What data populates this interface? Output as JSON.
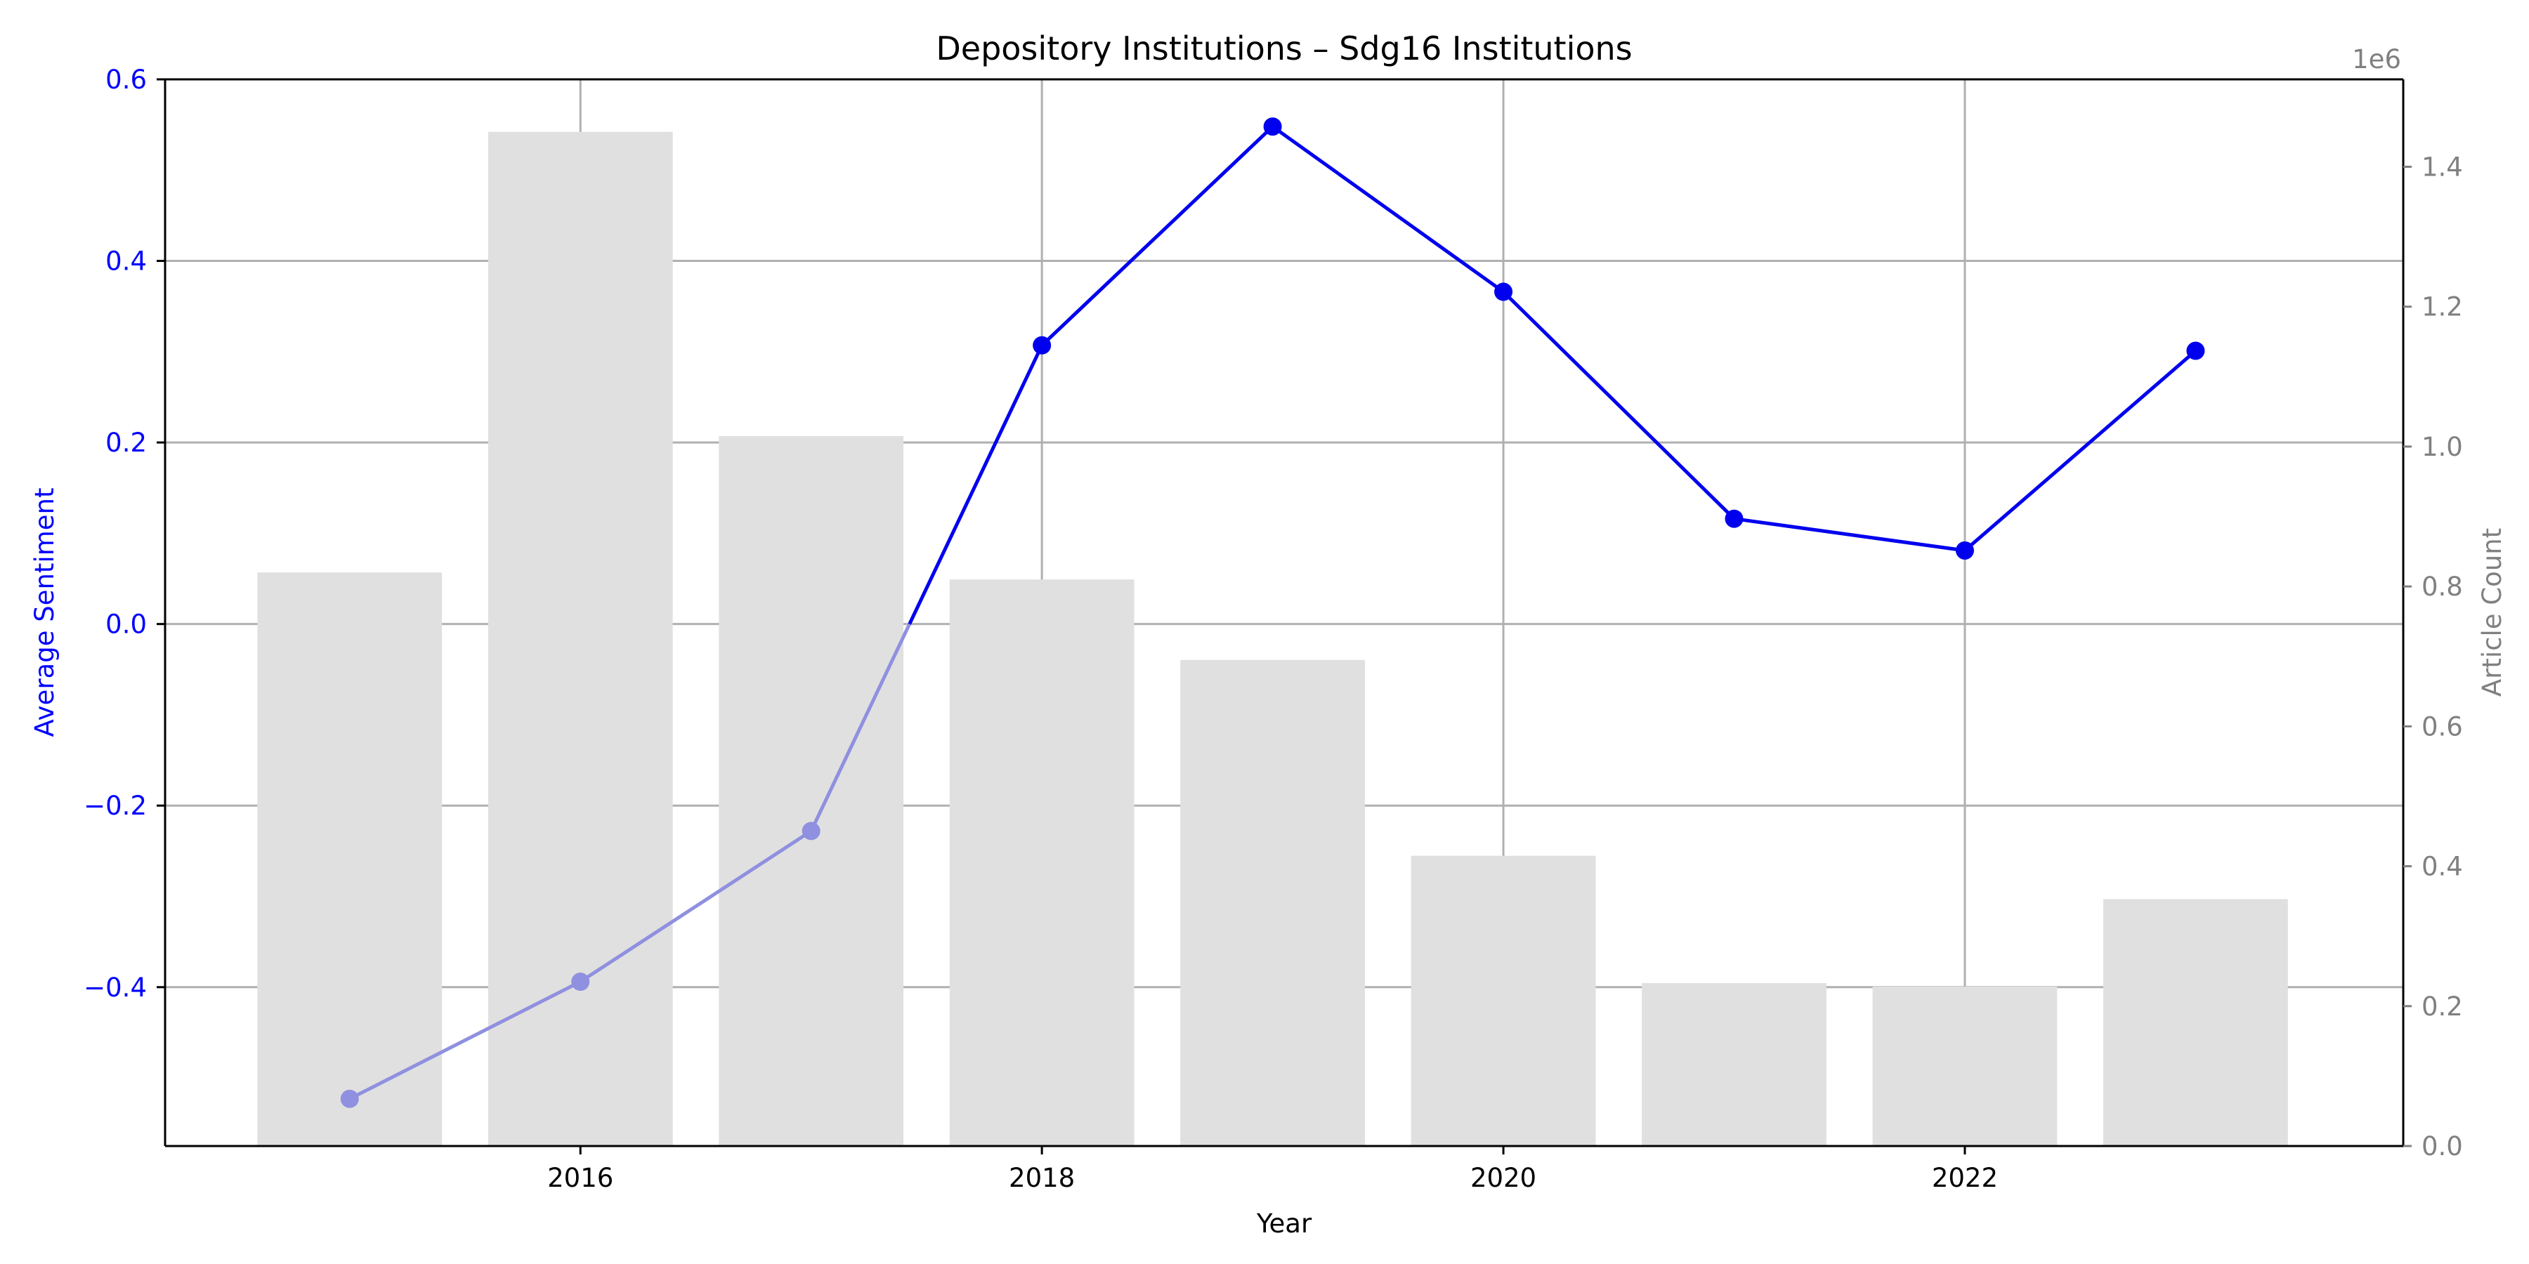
{
  "chart_data": {
    "type": "bar+line",
    "title": "Depository Institutions – Sdg16 Institutions",
    "xlabel": "Year",
    "ylabel_left": "Average Sentiment",
    "ylabel_right": "Article Count",
    "right_axis_offset_label": "1e6",
    "x": [
      2015,
      2016,
      2017,
      2018,
      2019,
      2020,
      2021,
      2022,
      2023
    ],
    "xlim": [
      2014.2,
      2023.9
    ],
    "x_ticks": [
      2016,
      2018,
      2020,
      2022
    ],
    "x_tick_labels": [
      "2016",
      "2018",
      "2020",
      "2022"
    ],
    "ylim_left": [
      -0.575,
      0.6
    ],
    "y_left_ticks": [
      -0.4,
      -0.2,
      0.0,
      0.2,
      0.4,
      0.6
    ],
    "y_left_tick_labels": [
      "−0.4",
      "−0.2",
      "0.0",
      "0.2",
      "0.4",
      "0.6"
    ],
    "ylim_right": [
      0,
      1.525
    ],
    "y_right_ticks": [
      0,
      0.2,
      0.4,
      0.6,
      0.8,
      1.0,
      1.2,
      1.4
    ],
    "y_right_tick_labels": [
      "0.0",
      "0.2",
      "0.4",
      "0.6",
      "0.8",
      "1.0",
      "1.2",
      "1.4"
    ],
    "series": [
      {
        "name": "Article Count",
        "kind": "bar",
        "axis": "right",
        "unit_scale": 1000000,
        "values": [
          0.82,
          1.45,
          1.015,
          0.81,
          0.695,
          0.415,
          0.233,
          0.228,
          0.353
        ],
        "color": "#e0e0e0"
      },
      {
        "name": "Average Sentiment",
        "kind": "line",
        "axis": "left",
        "values": [
          -0.523,
          -0.394,
          -0.228,
          0.307,
          0.548,
          0.366,
          0.116,
          0.081,
          0.301
        ],
        "color": "#0000ee",
        "negative_color": "#9090e0"
      }
    ],
    "grid": true,
    "legend": "none",
    "colors": {
      "left_axis": "#0000ff",
      "right_axis": "#808080",
      "grid": "#b0b0b0",
      "text": "#000000"
    }
  }
}
